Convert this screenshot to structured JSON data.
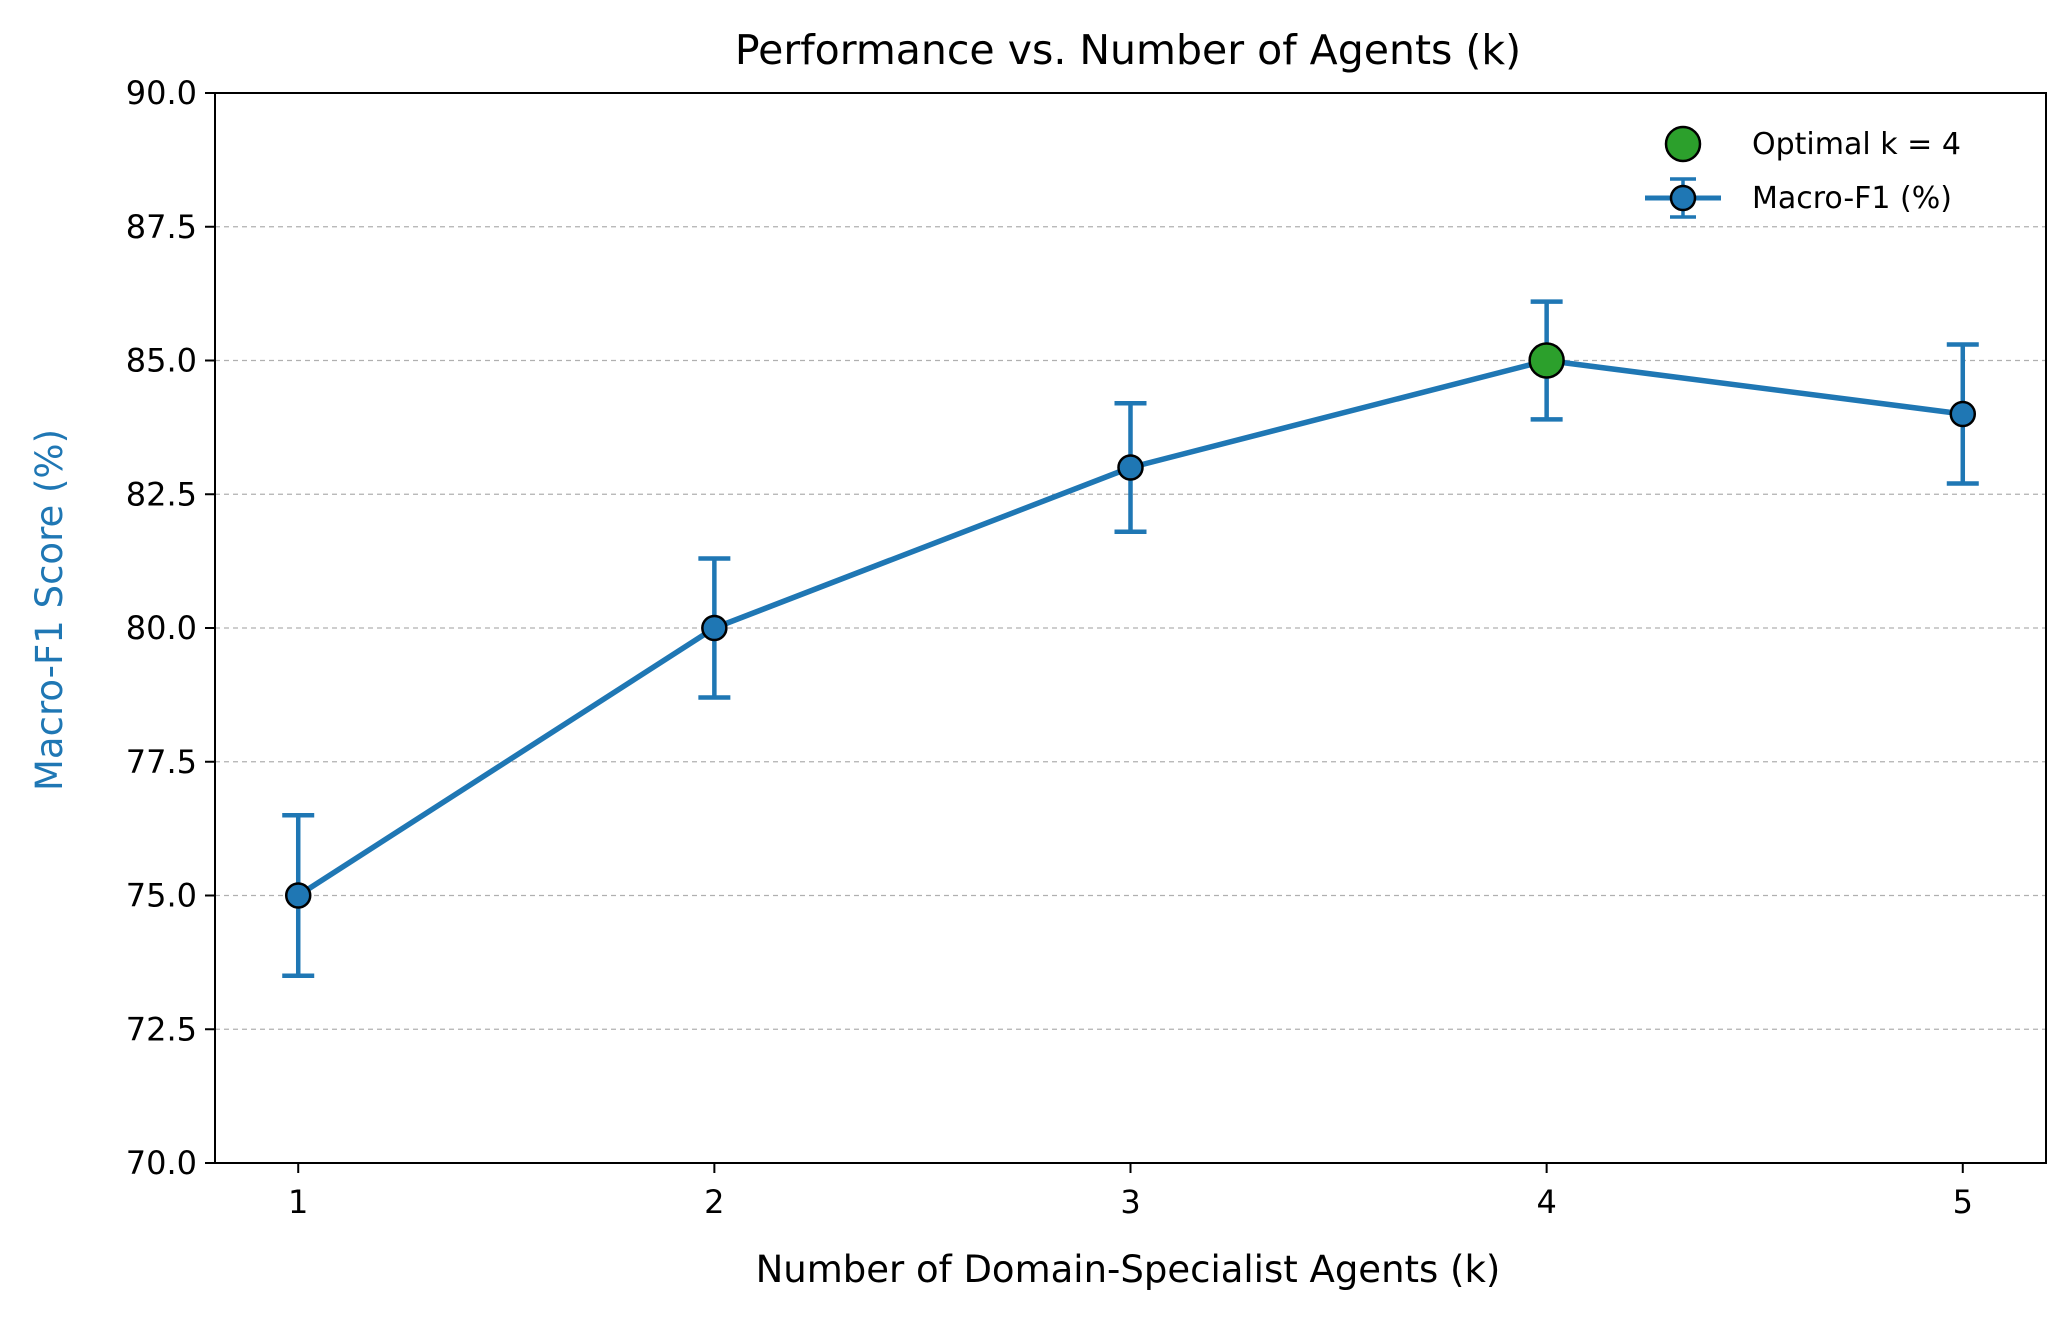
{
  "chart_data": {
    "type": "line",
    "title": "Performance vs. Number of Agents (k)",
    "xlabel": "Number of Domain-Specialist Agents (k)",
    "ylabel": "Macro-F1 Score (%)",
    "x": [
      1,
      2,
      3,
      4,
      5
    ],
    "xlim": [
      0.8,
      5.2
    ],
    "ylim": [
      70.0,
      90.0
    ],
    "xticks": [
      "1",
      "2",
      "3",
      "4",
      "5"
    ],
    "yticks": [
      "70.0",
      "72.5",
      "75.0",
      "77.5",
      "80.0",
      "82.5",
      "85.0",
      "87.5",
      "90.0"
    ],
    "grid": "horizontal-dashed",
    "legend_position": "top-right",
    "series": [
      {
        "name": "Macro-F1 (%)",
        "values": [
          75.0,
          80.0,
          83.0,
          85.0,
          84.0
        ],
        "errors": [
          1.5,
          1.3,
          1.2,
          1.1,
          1.3
        ],
        "color": "#1f77b4"
      }
    ],
    "highlight": {
      "label": "Optimal k = 4",
      "x": 4,
      "y": 85.0,
      "color": "#2ca02c"
    },
    "ylabel_color": "#1f77b4"
  }
}
